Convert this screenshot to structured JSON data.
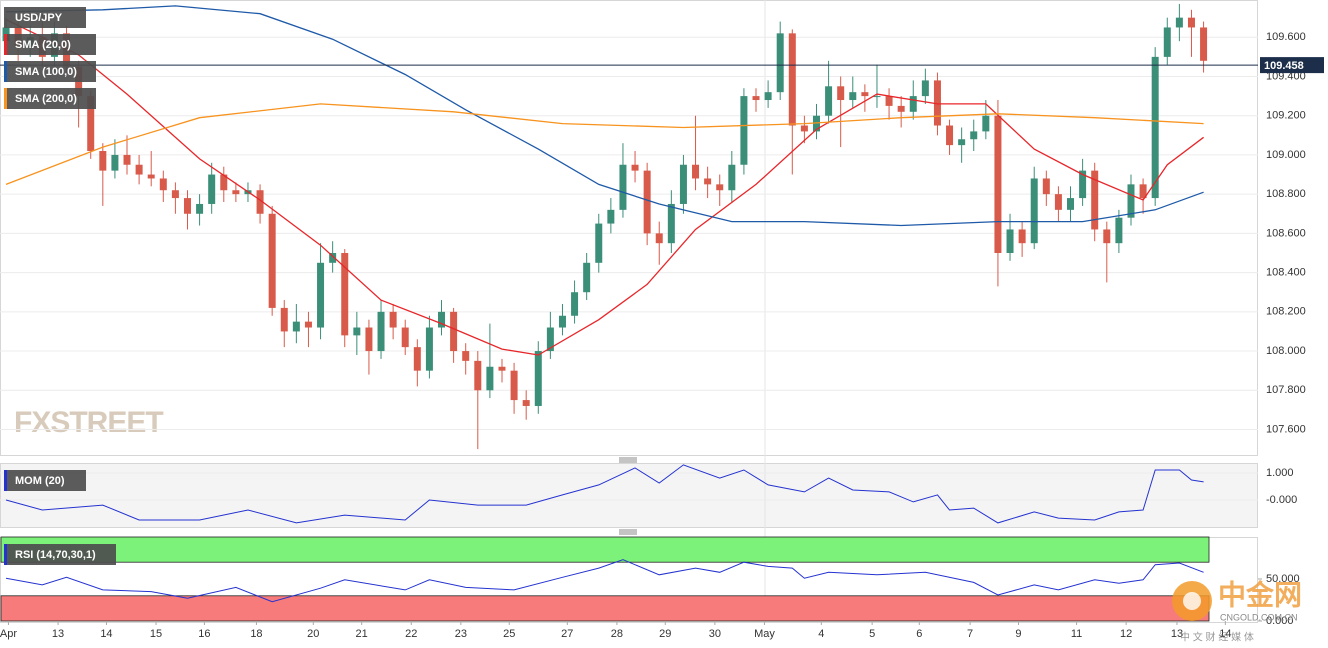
{
  "chart_data": [
    {
      "type": "candlestick",
      "title": "USD/JPY",
      "watermark": "FXSTREET",
      "up_color": "#3b8e78",
      "down_color": "#d85a4a",
      "xlim": [
        -0.5,
        103.5
      ],
      "ylim": [
        107.47,
        109.79
      ],
      "yticks": [
        {
          "value": 107.6,
          "label": "107.600"
        },
        {
          "value": 107.8,
          "label": "107.800"
        },
        {
          "value": 108.0,
          "label": "108.000"
        },
        {
          "value": 108.2,
          "label": "108.200"
        },
        {
          "value": 108.4,
          "label": "108.400"
        },
        {
          "value": 108.6,
          "label": "108.600"
        },
        {
          "value": 108.8,
          "label": "108.800"
        },
        {
          "value": 109.0,
          "label": "109.000"
        },
        {
          "value": 109.2,
          "label": "109.200"
        },
        {
          "value": 109.4,
          "label": "109.400"
        },
        {
          "value": 109.6,
          "label": "109.600"
        }
      ],
      "grid": true,
      "last": 109.458,
      "open": [
        109.58,
        109.65,
        109.55,
        109.6,
        109.5,
        109.62,
        109.45,
        109.3,
        109.02,
        108.92,
        109.0,
        108.95,
        108.9,
        108.88,
        108.82,
        108.78,
        108.7,
        108.75,
        108.9,
        108.82,
        108.8,
        108.82,
        108.7,
        108.22,
        108.1,
        108.15,
        108.12,
        108.45,
        108.5,
        108.08,
        108.12,
        108.0,
        108.2,
        108.12,
        108.02,
        107.9,
        108.12,
        108.2,
        108.0,
        107.95,
        107.8,
        107.92,
        107.9,
        107.75,
        107.72,
        108.0,
        108.12,
        108.18,
        108.3,
        108.45,
        108.65,
        108.72,
        108.95,
        108.92,
        108.6,
        108.55,
        108.75,
        108.95,
        108.88,
        108.85,
        108.82,
        108.95,
        109.3,
        109.28,
        109.32,
        109.62,
        109.15,
        109.12,
        109.2,
        109.35,
        109.28,
        109.32,
        109.3,
        109.3,
        109.25,
        109.22,
        109.3,
        109.38,
        109.15,
        109.05,
        109.08,
        109.12,
        109.2,
        108.5,
        108.62,
        108.55,
        108.88,
        108.8,
        108.72,
        108.78,
        108.92,
        108.62,
        108.55,
        108.68,
        108.85,
        108.78,
        109.5,
        109.65,
        109.7,
        109.65
      ],
      "high": [
        109.7,
        109.7,
        109.66,
        109.72,
        109.68,
        109.66,
        109.48,
        109.33,
        109.06,
        109.08,
        109.1,
        109.0,
        109.02,
        108.92,
        108.86,
        108.82,
        108.8,
        108.96,
        108.94,
        108.86,
        108.86,
        108.85,
        108.74,
        108.26,
        108.24,
        108.2,
        108.55,
        108.56,
        108.52,
        108.2,
        108.16,
        108.26,
        108.24,
        108.16,
        108.06,
        108.18,
        108.26,
        108.22,
        108.04,
        108.0,
        108.14,
        107.96,
        107.94,
        107.8,
        108.05,
        108.2,
        108.24,
        108.36,
        108.5,
        108.7,
        108.78,
        109.06,
        109.02,
        108.96,
        108.66,
        108.82,
        109.0,
        109.2,
        108.94,
        108.9,
        109.02,
        109.34,
        109.34,
        109.38,
        109.68,
        109.64,
        109.2,
        109.26,
        109.48,
        109.4,
        109.4,
        109.36,
        109.46,
        109.34,
        109.3,
        109.38,
        109.44,
        109.42,
        109.18,
        109.14,
        109.18,
        109.28,
        109.28,
        108.7,
        108.66,
        108.94,
        108.92,
        108.84,
        108.84,
        108.98,
        108.96,
        108.66,
        108.72,
        108.9,
        108.88,
        109.55,
        109.7,
        109.77,
        109.74,
        109.68
      ],
      "low": [
        109.52,
        109.48,
        109.5,
        109.45,
        109.42,
        109.4,
        109.14,
        108.98,
        108.74,
        108.88,
        108.9,
        108.85,
        108.84,
        108.76,
        108.7,
        108.62,
        108.64,
        108.7,
        108.76,
        108.76,
        108.76,
        108.65,
        108.18,
        108.02,
        108.04,
        108.02,
        108.06,
        108.4,
        108.02,
        107.98,
        107.88,
        107.96,
        108.06,
        107.98,
        107.82,
        107.86,
        108.08,
        107.94,
        107.88,
        107.5,
        107.76,
        107.84,
        107.68,
        107.65,
        107.68,
        107.96,
        108.08,
        108.14,
        108.26,
        108.4,
        108.6,
        108.68,
        108.86,
        108.54,
        108.44,
        108.5,
        108.7,
        108.82,
        108.78,
        108.74,
        108.76,
        108.9,
        109.22,
        109.24,
        109.28,
        108.9,
        109.06,
        109.08,
        109.16,
        109.04,
        109.24,
        109.22,
        109.24,
        109.18,
        109.14,
        109.18,
        109.26,
        109.1,
        109.0,
        108.96,
        109.02,
        109.08,
        108.33,
        108.46,
        108.48,
        108.52,
        108.74,
        108.66,
        108.66,
        108.74,
        108.56,
        108.35,
        108.5,
        108.64,
        108.7,
        108.74,
        109.46,
        109.58,
        109.5,
        109.42
      ],
      "close": [
        109.65,
        109.55,
        109.6,
        109.5,
        109.62,
        109.45,
        109.3,
        109.02,
        108.92,
        109.0,
        108.95,
        108.9,
        108.88,
        108.82,
        108.78,
        108.7,
        108.75,
        108.9,
        108.82,
        108.8,
        108.82,
        108.7,
        108.22,
        108.1,
        108.15,
        108.12,
        108.45,
        108.5,
        108.08,
        108.12,
        108.0,
        108.2,
        108.12,
        108.02,
        107.9,
        108.12,
        108.2,
        108.0,
        107.95,
        107.8,
        107.92,
        107.9,
        107.75,
        107.72,
        108.0,
        108.12,
        108.18,
        108.3,
        108.45,
        108.65,
        108.72,
        108.95,
        108.92,
        108.6,
        108.55,
        108.75,
        108.95,
        108.88,
        108.85,
        108.82,
        108.95,
        109.3,
        109.28,
        109.32,
        109.62,
        109.15,
        109.12,
        109.2,
        109.35,
        109.28,
        109.32,
        109.3,
        109.3,
        109.25,
        109.22,
        109.3,
        109.38,
        109.15,
        109.05,
        109.08,
        109.12,
        109.2,
        108.5,
        108.62,
        108.55,
        108.88,
        108.8,
        108.72,
        108.78,
        108.92,
        108.62,
        108.55,
        108.68,
        108.85,
        108.78,
        109.5,
        109.65,
        109.7,
        109.65,
        109.48
      ],
      "series": [
        {
          "name": "SMA (20,0)",
          "color": "#e8262a",
          "x": [
            0,
            6,
            10,
            16,
            21,
            26,
            31,
            36,
            41,
            44,
            49,
            53,
            57,
            62,
            67,
            72,
            77,
            81,
            85,
            89,
            94,
            96,
            99
          ],
          "values": [
            109.69,
            109.51,
            109.31,
            108.98,
            108.77,
            108.54,
            108.26,
            108.14,
            108.01,
            107.98,
            108.16,
            108.34,
            108.62,
            108.85,
            109.13,
            109.31,
            109.26,
            109.26,
            109.03,
            108.9,
            108.77,
            108.95,
            109.09
          ]
        },
        {
          "name": "SMA (100,0)",
          "color": "#1e5aa8",
          "x": [
            0,
            8,
            14,
            21,
            27,
            33,
            38,
            44,
            49,
            54,
            60,
            66,
            74,
            82,
            89,
            95,
            99
          ],
          "values": [
            109.73,
            109.74,
            109.76,
            109.72,
            109.59,
            109.41,
            109.23,
            109.03,
            108.85,
            108.75,
            108.66,
            108.66,
            108.64,
            108.66,
            108.66,
            108.72,
            108.81
          ]
        },
        {
          "name": "SMA (200,0)",
          "color": "#f7931e",
          "x": [
            0,
            8,
            16,
            26,
            37,
            46,
            56,
            66,
            74,
            82,
            90,
            99
          ],
          "values": [
            108.85,
            109.04,
            109.19,
            109.26,
            109.22,
            109.16,
            109.14,
            109.16,
            109.19,
            109.21,
            109.19,
            109.16
          ]
        }
      ]
    },
    {
      "type": "line",
      "title": "MOM (20)",
      "color": "#2432d0",
      "xlim": [
        -0.5,
        103.5
      ],
      "ylim": [
        -1.0,
        1.37
      ],
      "yticks": [
        {
          "value": 1,
          "label": "1.000"
        },
        {
          "value": 0,
          "label": "-0.000"
        }
      ],
      "grid": true,
      "x": [
        0,
        3,
        8,
        11,
        16,
        20,
        24,
        28,
        33,
        35,
        39,
        43,
        46,
        49,
        52,
        54,
        56,
        59,
        61,
        63,
        66,
        68,
        70,
        73,
        75,
        77,
        78,
        80,
        82,
        85,
        87,
        90,
        92,
        94,
        95,
        97,
        98,
        99
      ],
      "values": [
        0.0,
        -0.37,
        -0.19,
        -0.74,
        -0.74,
        -0.37,
        -0.85,
        -0.56,
        -0.74,
        0.0,
        -0.19,
        -0.19,
        0.19,
        0.56,
        1.19,
        0.63,
        1.3,
        0.81,
        1.11,
        0.56,
        0.3,
        0.81,
        0.37,
        0.3,
        -0.07,
        0.19,
        -0.37,
        -0.3,
        -0.85,
        -0.44,
        -0.67,
        -0.74,
        -0.44,
        -0.37,
        1.11,
        1.11,
        0.74,
        0.67
      ]
    },
    {
      "type": "line",
      "title": "RSI (14,70,30,1)",
      "color": "#2432d0",
      "xlim": [
        -0.5,
        103.5
      ],
      "ylim": [
        0,
        100
      ],
      "yticks": [
        {
          "value": 50,
          "label": "50.000"
        },
        {
          "value": 0,
          "label": "0.000"
        }
      ],
      "overbought": 70,
      "oversold": 30,
      "x": [
        0,
        3,
        5,
        8,
        12,
        15,
        19,
        22,
        26,
        28,
        33,
        35,
        38,
        42,
        46,
        49,
        51,
        54,
        57,
        59,
        61,
        63,
        65,
        66,
        68,
        72,
        76,
        80,
        82,
        85,
        87,
        90,
        92,
        94,
        95,
        97,
        99
      ],
      "values": [
        51,
        43,
        52,
        37,
        35,
        27,
        40,
        23,
        39,
        49,
        37,
        49,
        40,
        37,
        52,
        63,
        73,
        55,
        63,
        58,
        70,
        65,
        63,
        51,
        58,
        55,
        58,
        46,
        31,
        43,
        37,
        49,
        45,
        49,
        67,
        69,
        58
      ],
      "xticks": [
        {
          "value": 0.2,
          "label": "Apr"
        },
        {
          "value": 4.3,
          "label": "13"
        },
        {
          "value": 8.3,
          "label": "14"
        },
        {
          "value": 12.4,
          "label": "15"
        },
        {
          "value": 16.4,
          "label": "16"
        },
        {
          "value": 20.7,
          "label": "18"
        },
        {
          "value": 25.4,
          "label": "20"
        },
        {
          "value": 29.4,
          "label": "21"
        },
        {
          "value": 33.5,
          "label": "22"
        },
        {
          "value": 37.6,
          "label": "23"
        },
        {
          "value": 41.6,
          "label": "25"
        },
        {
          "value": 46.4,
          "label": "27"
        },
        {
          "value": 50.5,
          "label": "28"
        },
        {
          "value": 54.5,
          "label": "29"
        },
        {
          "value": 58.6,
          "label": "30"
        },
        {
          "value": 62.7,
          "label": "May"
        },
        {
          "value": 67.4,
          "label": "4"
        },
        {
          "value": 71.6,
          "label": "5"
        },
        {
          "value": 75.5,
          "label": "6"
        },
        {
          "value": 79.7,
          "label": "7"
        },
        {
          "value": 83.7,
          "label": "9"
        },
        {
          "value": 88.5,
          "label": "11"
        },
        {
          "value": 92.6,
          "label": "12"
        },
        {
          "value": 96.8,
          "label": "13"
        },
        {
          "value": 100.8,
          "label": "14"
        }
      ]
    }
  ],
  "source_badge": {
    "name": "中金网",
    "site": "CNGOLD.COM.CN",
    "tagline": "中 文 财 经 媒 体"
  }
}
